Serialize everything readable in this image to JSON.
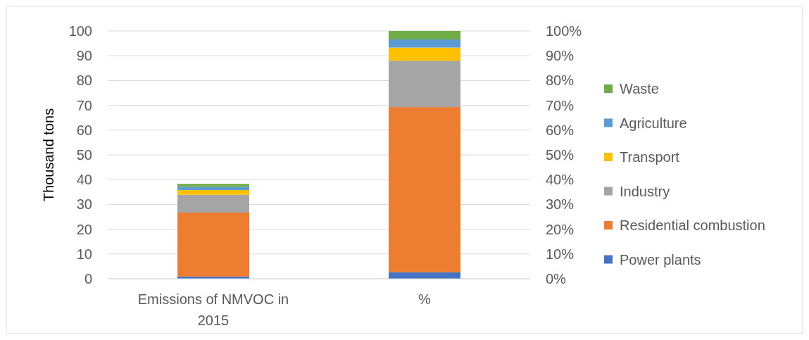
{
  "chart_data": {
    "type": "bar",
    "stacked": true,
    "ylabel": "Thousand tons",
    "categories": [
      "Emissions of NMVOC in 2015",
      "%"
    ],
    "series": [
      {
        "name": "Power plants",
        "color": "#4472c4",
        "values": [
          0.9,
          2.6
        ]
      },
      {
        "name": "Residential combustion",
        "color": "#ed7d31",
        "values": [
          25.8,
          66.7
        ]
      },
      {
        "name": "Industry",
        "color": "#a5a5a5",
        "values": [
          7.2,
          18.7
        ]
      },
      {
        "name": "Transport",
        "color": "#ffc000",
        "values": [
          1.9,
          5.3
        ]
      },
      {
        "name": "Agriculture",
        "color": "#5b9bd5",
        "values": [
          1.3,
          3.3
        ]
      },
      {
        "name": "Waste",
        "color": "#70ad47",
        "values": [
          1.2,
          3.4
        ]
      }
    ],
    "ylim": [
      0,
      100
    ],
    "yticks": [
      0,
      10,
      20,
      30,
      40,
      50,
      60,
      70,
      80,
      90,
      100
    ],
    "y2lim": [
      0,
      1
    ],
    "y2ticks": [
      {
        "value": 0,
        "label": "0%"
      },
      {
        "value": 0.1,
        "label": "10%"
      },
      {
        "value": 0.2,
        "label": "20%"
      },
      {
        "value": 0.3,
        "label": "30%"
      },
      {
        "value": 0.4,
        "label": "40%"
      },
      {
        "value": 0.5,
        "label": "50%"
      },
      {
        "value": 0.6,
        "label": "60%"
      },
      {
        "value": 0.7,
        "label": "70%"
      },
      {
        "value": 0.8,
        "label": "80%"
      },
      {
        "value": 0.9,
        "label": "90%"
      },
      {
        "value": 1,
        "label": "100%"
      }
    ],
    "grid": "y",
    "legend": "right"
  }
}
